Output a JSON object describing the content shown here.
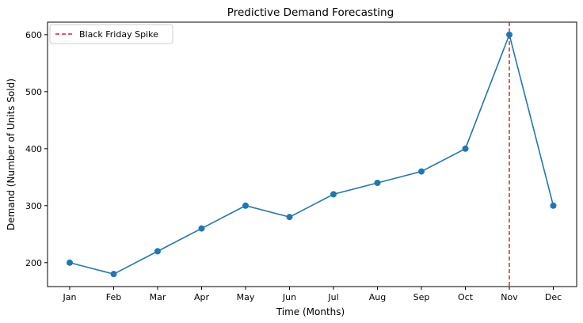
{
  "chart_data": {
    "type": "line",
    "title": "Predictive Demand Forecasting",
    "xlabel": "Time (Months)",
    "ylabel": "Demand (Number of Units Sold)",
    "categories": [
      "Jan",
      "Feb",
      "Mar",
      "Apr",
      "May",
      "Jun",
      "Jul",
      "Aug",
      "Sep",
      "Oct",
      "Nov",
      "Dec"
    ],
    "series": [
      {
        "name": "Demand",
        "values": [
          200,
          180,
          220,
          260,
          300,
          280,
          320,
          340,
          360,
          400,
          600,
          300
        ],
        "color": "#1f77b4"
      }
    ],
    "y_ticks": [
      200,
      300,
      400,
      500,
      600
    ],
    "ylim": [
      158,
      622
    ],
    "annotation": {
      "type": "vertical-line",
      "category": "Nov",
      "label": "Black Friday Spike",
      "color": "#d62728",
      "style": "dashed"
    },
    "legend": {
      "position": "top-left",
      "entries": [
        "Black Friday Spike"
      ]
    },
    "grid": false
  }
}
